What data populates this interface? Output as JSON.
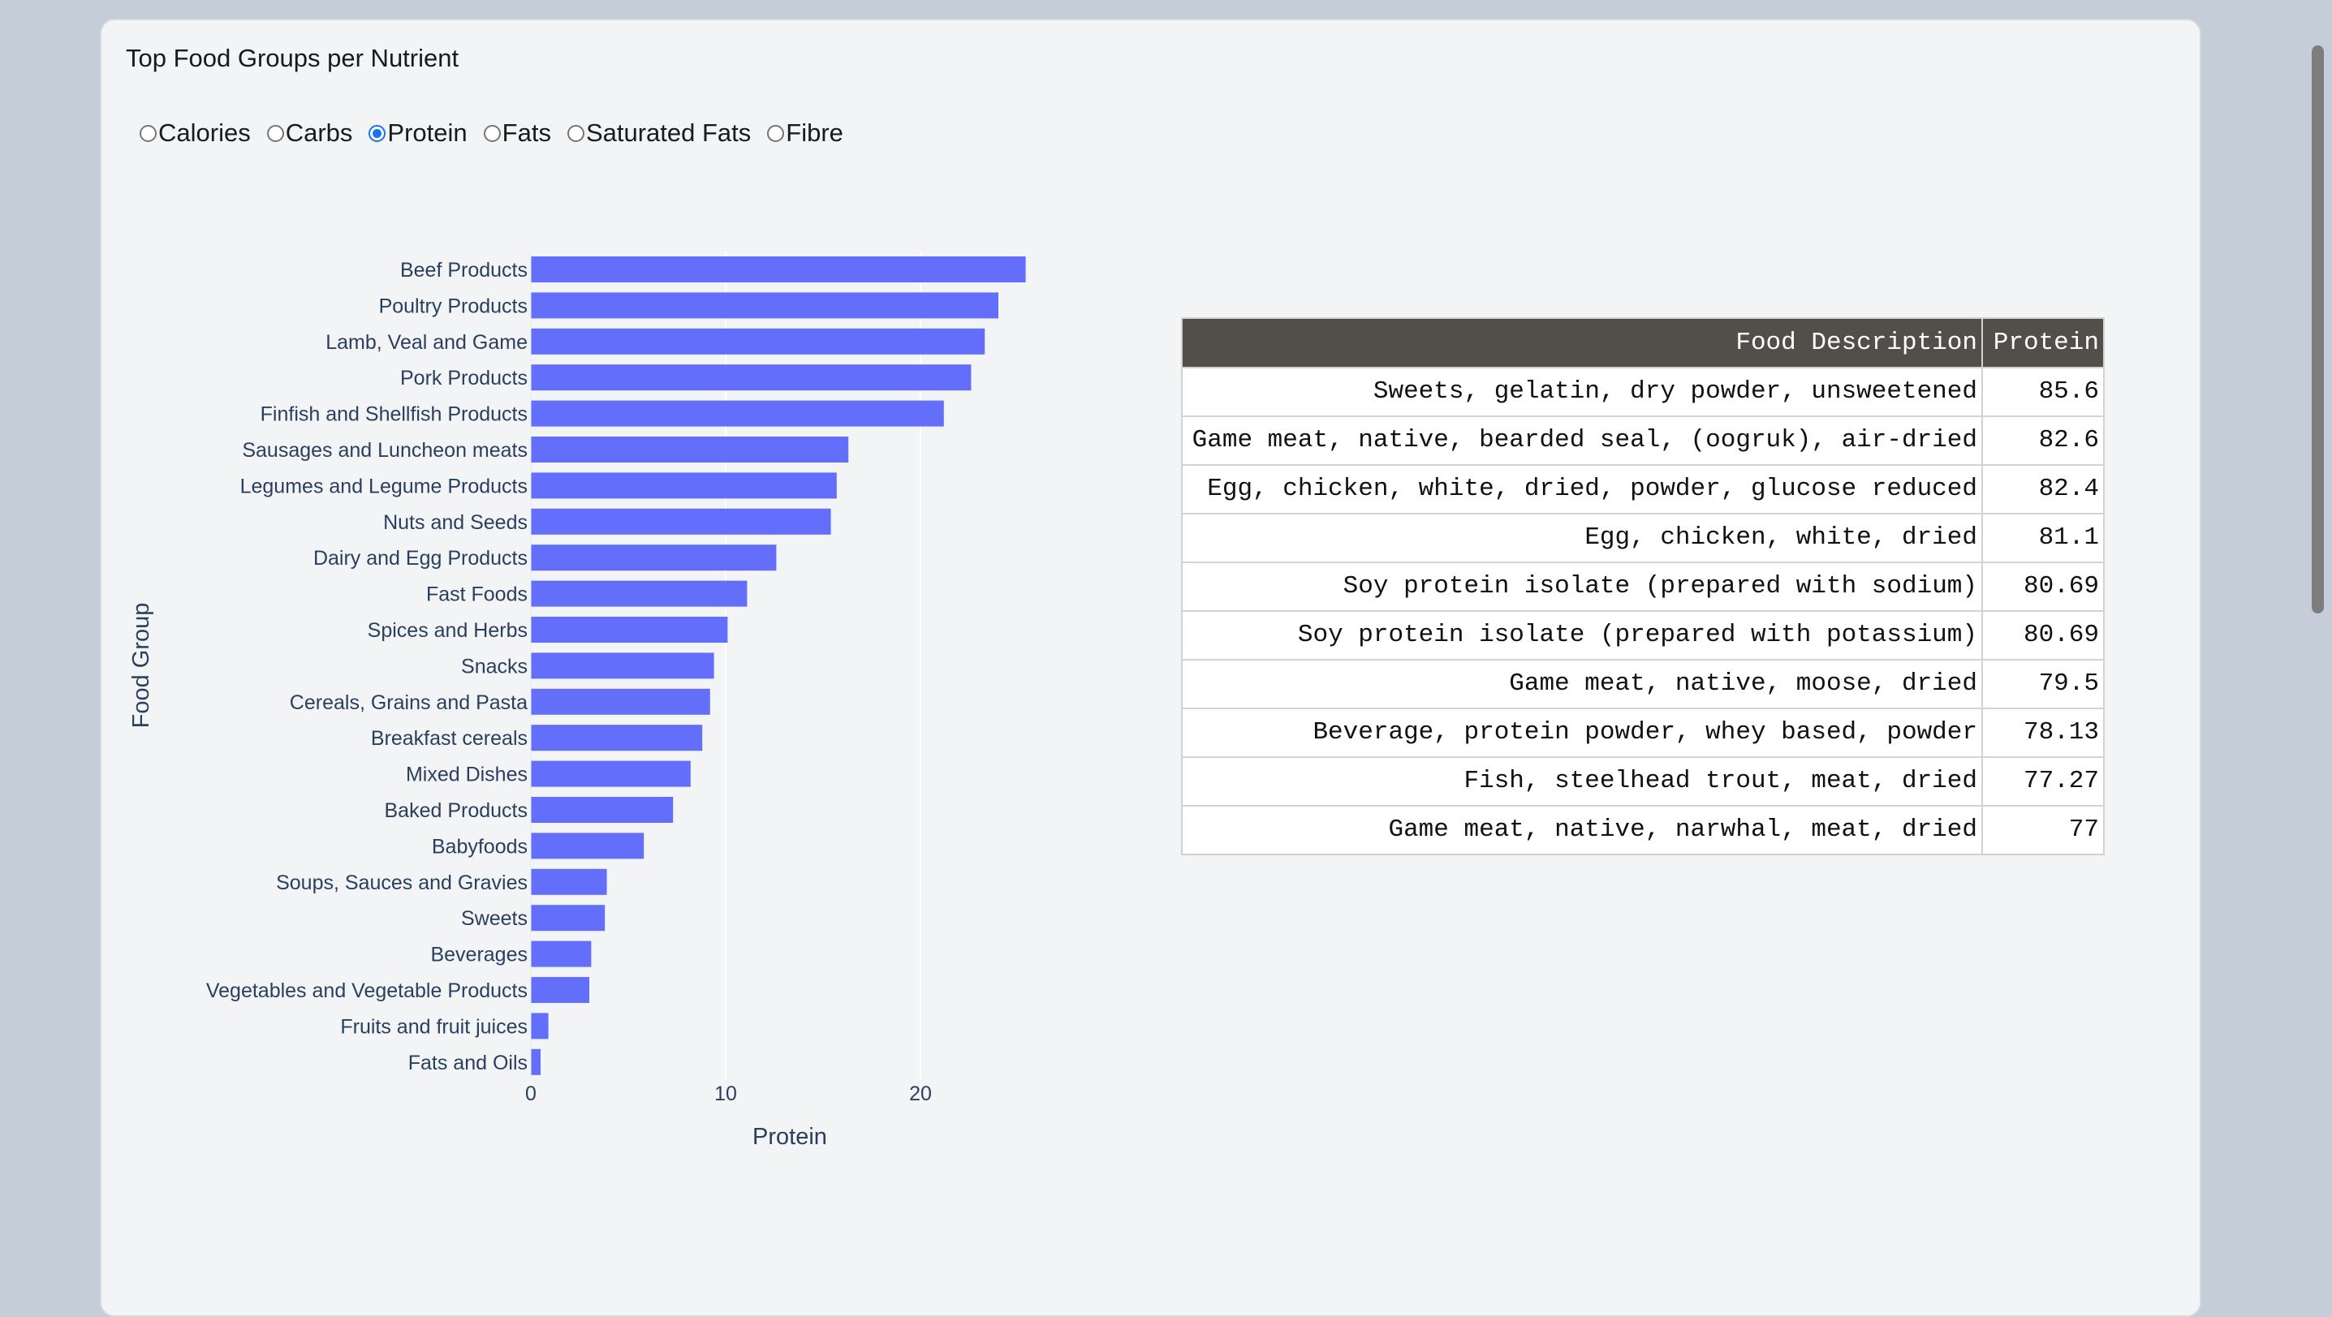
{
  "card": {
    "title": "Top Food Groups per Nutrient"
  },
  "nutrient_options": [
    {
      "label": "Calories",
      "selected": false
    },
    {
      "label": "Carbs",
      "selected": false
    },
    {
      "label": "Protein",
      "selected": true
    },
    {
      "label": "Fats",
      "selected": false
    },
    {
      "label": "Saturated Fats",
      "selected": false
    },
    {
      "label": "Fibre",
      "selected": false
    }
  ],
  "chart_data": {
    "type": "bar",
    "orientation": "horizontal",
    "xlabel": "Protein",
    "ylabel": "Food Group",
    "xlim": [
      0,
      25.4
    ],
    "xticks": [
      0,
      10,
      20
    ],
    "grid": true,
    "bar_color": "#636efa",
    "categories": [
      "Beef Products",
      "Poultry Products",
      "Lamb, Veal and Game",
      "Pork Products",
      "Finfish and Shellfish Products",
      "Sausages and Luncheon meats",
      "Legumes and Legume Products",
      "Nuts and Seeds",
      "Dairy and Egg Products",
      "Fast Foods",
      "Spices and Herbs",
      "Snacks",
      "Cereals, Grains and Pasta",
      "Breakfast cereals",
      "Mixed Dishes",
      "Baked Products",
      "Babyfoods",
      "Soups, Sauces and Gravies",
      "Sweets",
      "Beverages",
      "Vegetables and Vegetable Products",
      "Fruits and fruit juices",
      "Fats and Oils"
    ],
    "values": [
      25.4,
      24.0,
      23.3,
      22.6,
      21.2,
      16.3,
      15.7,
      15.4,
      12.6,
      11.1,
      10.1,
      9.4,
      9.2,
      8.8,
      8.2,
      7.3,
      5.8,
      3.9,
      3.8,
      3.1,
      3.0,
      0.9,
      0.5
    ]
  },
  "table": {
    "headers": [
      "Food Description",
      "Protein"
    ],
    "rows": [
      [
        "Sweets, gelatin, dry powder, unsweetened",
        "85.6"
      ],
      [
        "Game meat, native, bearded seal, (oogruk), air-dried",
        "82.6"
      ],
      [
        "Egg, chicken, white, dried, powder, glucose reduced",
        "82.4"
      ],
      [
        "Egg, chicken, white, dried",
        "81.1"
      ],
      [
        "Soy protein isolate (prepared with sodium)",
        "80.69"
      ],
      [
        "Soy protein isolate (prepared with potassium)",
        "80.69"
      ],
      [
        "Game meat, native, moose, dried",
        "79.5"
      ],
      [
        "Beverage, protein powder, whey based, powder",
        "78.13"
      ],
      [
        "Fish, steelhead trout, meat, dried",
        "77.27"
      ],
      [
        "Game meat, native, narwhal, meat, dried",
        "77"
      ]
    ]
  }
}
